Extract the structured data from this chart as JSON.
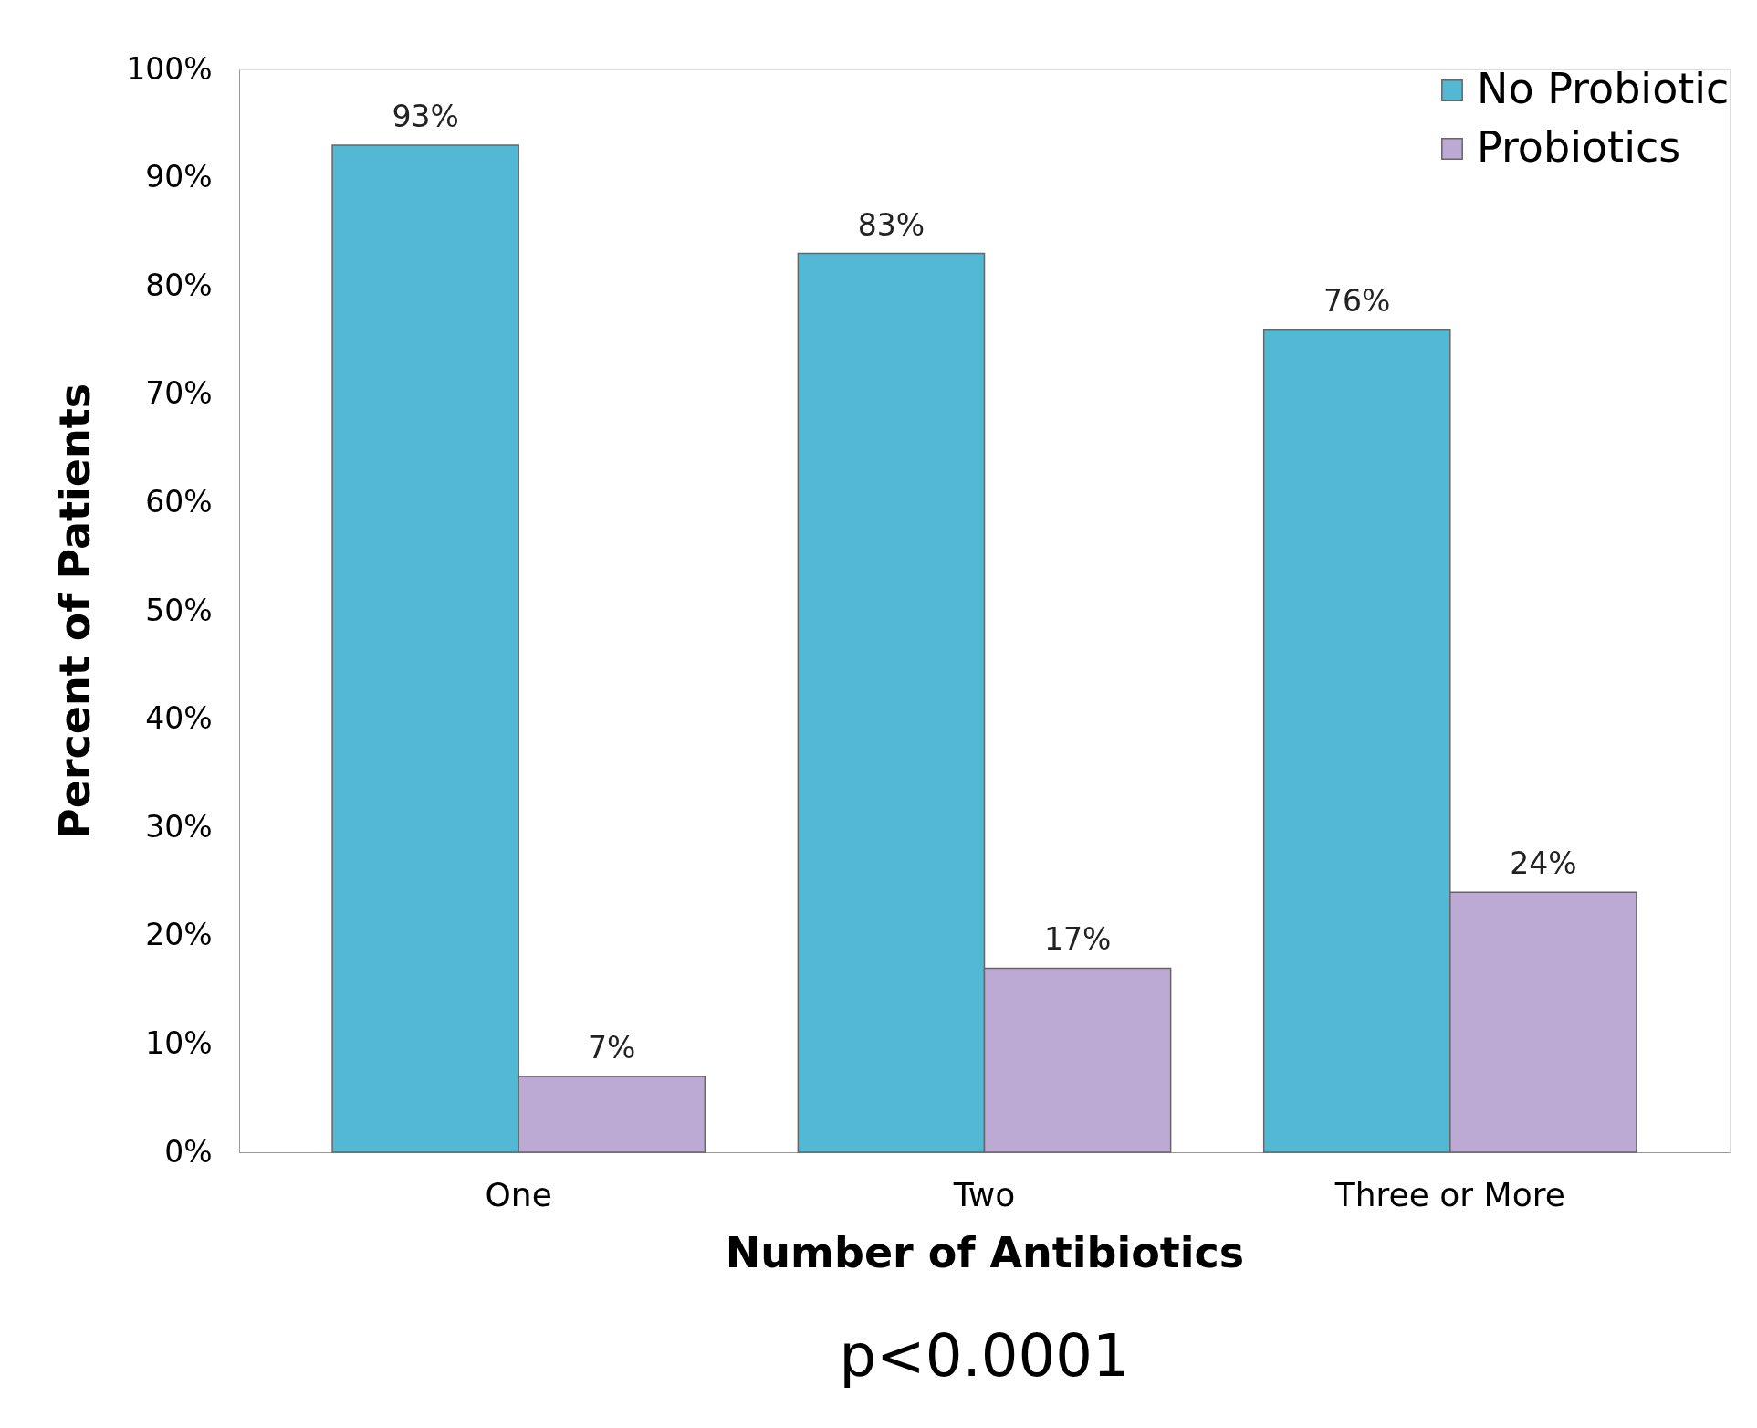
{
  "chart_data": {
    "type": "bar",
    "xlabel": "Number of Antibiotics",
    "ylabel": "Percent of Patients",
    "categories": [
      "One",
      "Two",
      "Three or More"
    ],
    "series": [
      {
        "name": "No Probiotic",
        "color": "#53b8d3",
        "values": [
          93,
          83,
          76
        ],
        "value_labels": [
          "93%",
          "83%",
          "76%"
        ]
      },
      {
        "name": "Probiotics",
        "color": "#bdaad4",
        "values": [
          7,
          17,
          24
        ],
        "value_labels": [
          "7%",
          "17%",
          "24%"
        ]
      }
    ],
    "ylim": [
      0,
      100
    ],
    "yticks": [
      {
        "value": 0,
        "label": "0%"
      },
      {
        "value": 10,
        "label": "10%"
      },
      {
        "value": 20,
        "label": "20%"
      },
      {
        "value": 30,
        "label": "30%"
      },
      {
        "value": 40,
        "label": "40%"
      },
      {
        "value": 50,
        "label": "50%"
      },
      {
        "value": 60,
        "label": "60%"
      },
      {
        "value": 70,
        "label": "70%"
      },
      {
        "value": 80,
        "label": "80%"
      },
      {
        "value": 90,
        "label": "90%"
      },
      {
        "value": 100,
        "label": "100%"
      }
    ],
    "grid": false,
    "legend": "top right",
    "annotations": [
      "p<0.0001"
    ]
  }
}
